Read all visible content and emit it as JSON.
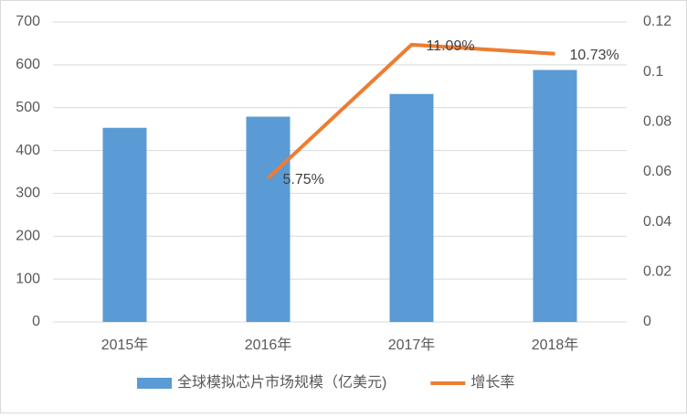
{
  "chart_data": {
    "type": "bar",
    "categories": [
      "2015年",
      "2016年",
      "2017年",
      "2018年"
    ],
    "series": [
      {
        "name": "全球模拟芯片市场规模（亿美元)",
        "type": "bar",
        "color": "#5b9bd5",
        "values": [
          453,
          479,
          532,
          588
        ]
      },
      {
        "name": "增长率",
        "type": "line",
        "axis": "y2",
        "color": "#ed7d31",
        "values": [
          null,
          0.0575,
          0.1109,
          0.1073
        ],
        "value_labels": [
          null,
          "5.75%",
          "11.09%",
          "10.73%"
        ]
      }
    ],
    "ylim": [
      0,
      700
    ],
    "yticks": [
      0,
      100,
      200,
      300,
      400,
      500,
      600,
      700
    ],
    "y2lim": [
      0,
      0.12
    ],
    "y2ticks": [
      0,
      0.02,
      0.04,
      0.06,
      0.08,
      0.1,
      0.12
    ],
    "grid": true,
    "legend": "bottom"
  }
}
